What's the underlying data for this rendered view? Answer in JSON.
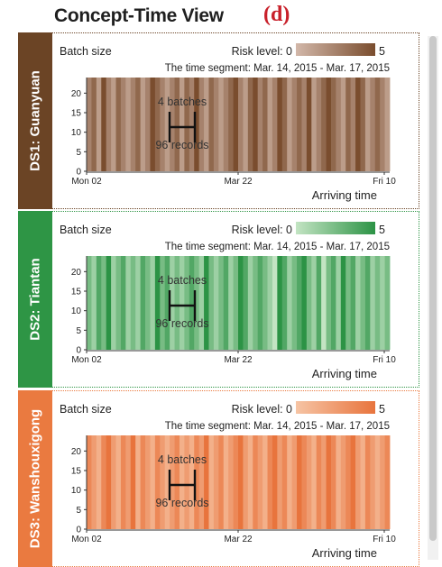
{
  "header": {
    "title": "Concept-Time View",
    "tag": "(d)"
  },
  "common": {
    "y_label": "Batch size",
    "risk_label": "Risk level: 0",
    "risk_max": "5",
    "segment": "The time segment: Mar. 14, 2015 - Mar. 17, 2015",
    "x_axis_label": "Arriving time",
    "x_ticks": [
      "Mon 02",
      "Mar 22",
      "Fri 10"
    ],
    "y_ticks": [
      "0",
      "5",
      "10",
      "15",
      "20"
    ],
    "annot_top": "4 batches",
    "annot_bottom": "96 records"
  },
  "panels": [
    {
      "name": "DS1: Guanyuan",
      "accent": "#6b4425",
      "light": "#d2b7a9",
      "dark": "#7a4d2e",
      "levels": [
        2,
        3,
        1,
        4,
        2,
        1,
        3,
        2,
        1,
        2,
        3,
        1,
        2,
        4,
        3,
        2,
        1,
        2,
        3,
        1,
        3,
        2,
        4,
        2,
        1,
        3,
        2,
        1,
        2,
        3,
        4,
        2,
        1,
        3,
        4,
        2,
        3,
        1,
        2,
        4,
        3,
        1,
        2,
        3,
        2,
        4,
        1,
        2,
        3,
        4,
        3,
        2,
        1,
        3,
        2,
        4,
        3,
        1,
        2,
        3,
        2,
        1
      ]
    },
    {
      "name": "DS2: Tiantan",
      "accent": "#2e9545",
      "light": "#c3e4c3",
      "dark": "#2c9345",
      "levels": [
        2,
        1,
        3,
        2,
        4,
        1,
        2,
        3,
        1,
        2,
        1,
        3,
        2,
        1,
        4,
        2,
        3,
        1,
        2,
        1,
        2,
        3,
        2,
        1,
        4,
        2,
        1,
        2,
        3,
        1,
        2,
        4,
        3,
        1,
        2,
        3,
        2,
        1,
        0,
        4,
        3,
        1,
        2,
        3,
        4,
        2,
        1,
        3,
        0,
        2,
        3,
        1,
        4,
        2,
        3,
        1,
        2,
        3,
        1,
        2,
        1,
        2
      ]
    },
    {
      "name": "DS3: Wanshouxigong",
      "accent": "#ea7a40",
      "light": "#f6c4a4",
      "dark": "#e8743d",
      "levels": [
        3,
        2,
        1,
        3,
        4,
        2,
        1,
        3,
        2,
        4,
        1,
        3,
        2,
        1,
        3,
        2,
        1,
        2,
        3,
        1,
        2,
        1,
        3,
        2,
        4,
        1,
        2,
        3,
        1,
        2,
        3,
        4,
        2,
        1,
        3,
        2,
        1,
        3,
        4,
        2,
        3,
        1,
        2,
        4,
        3,
        2,
        1,
        3,
        2,
        4,
        3,
        1,
        2,
        3,
        4,
        2,
        1,
        3,
        2,
        1,
        2,
        3
      ]
    }
  ]
}
